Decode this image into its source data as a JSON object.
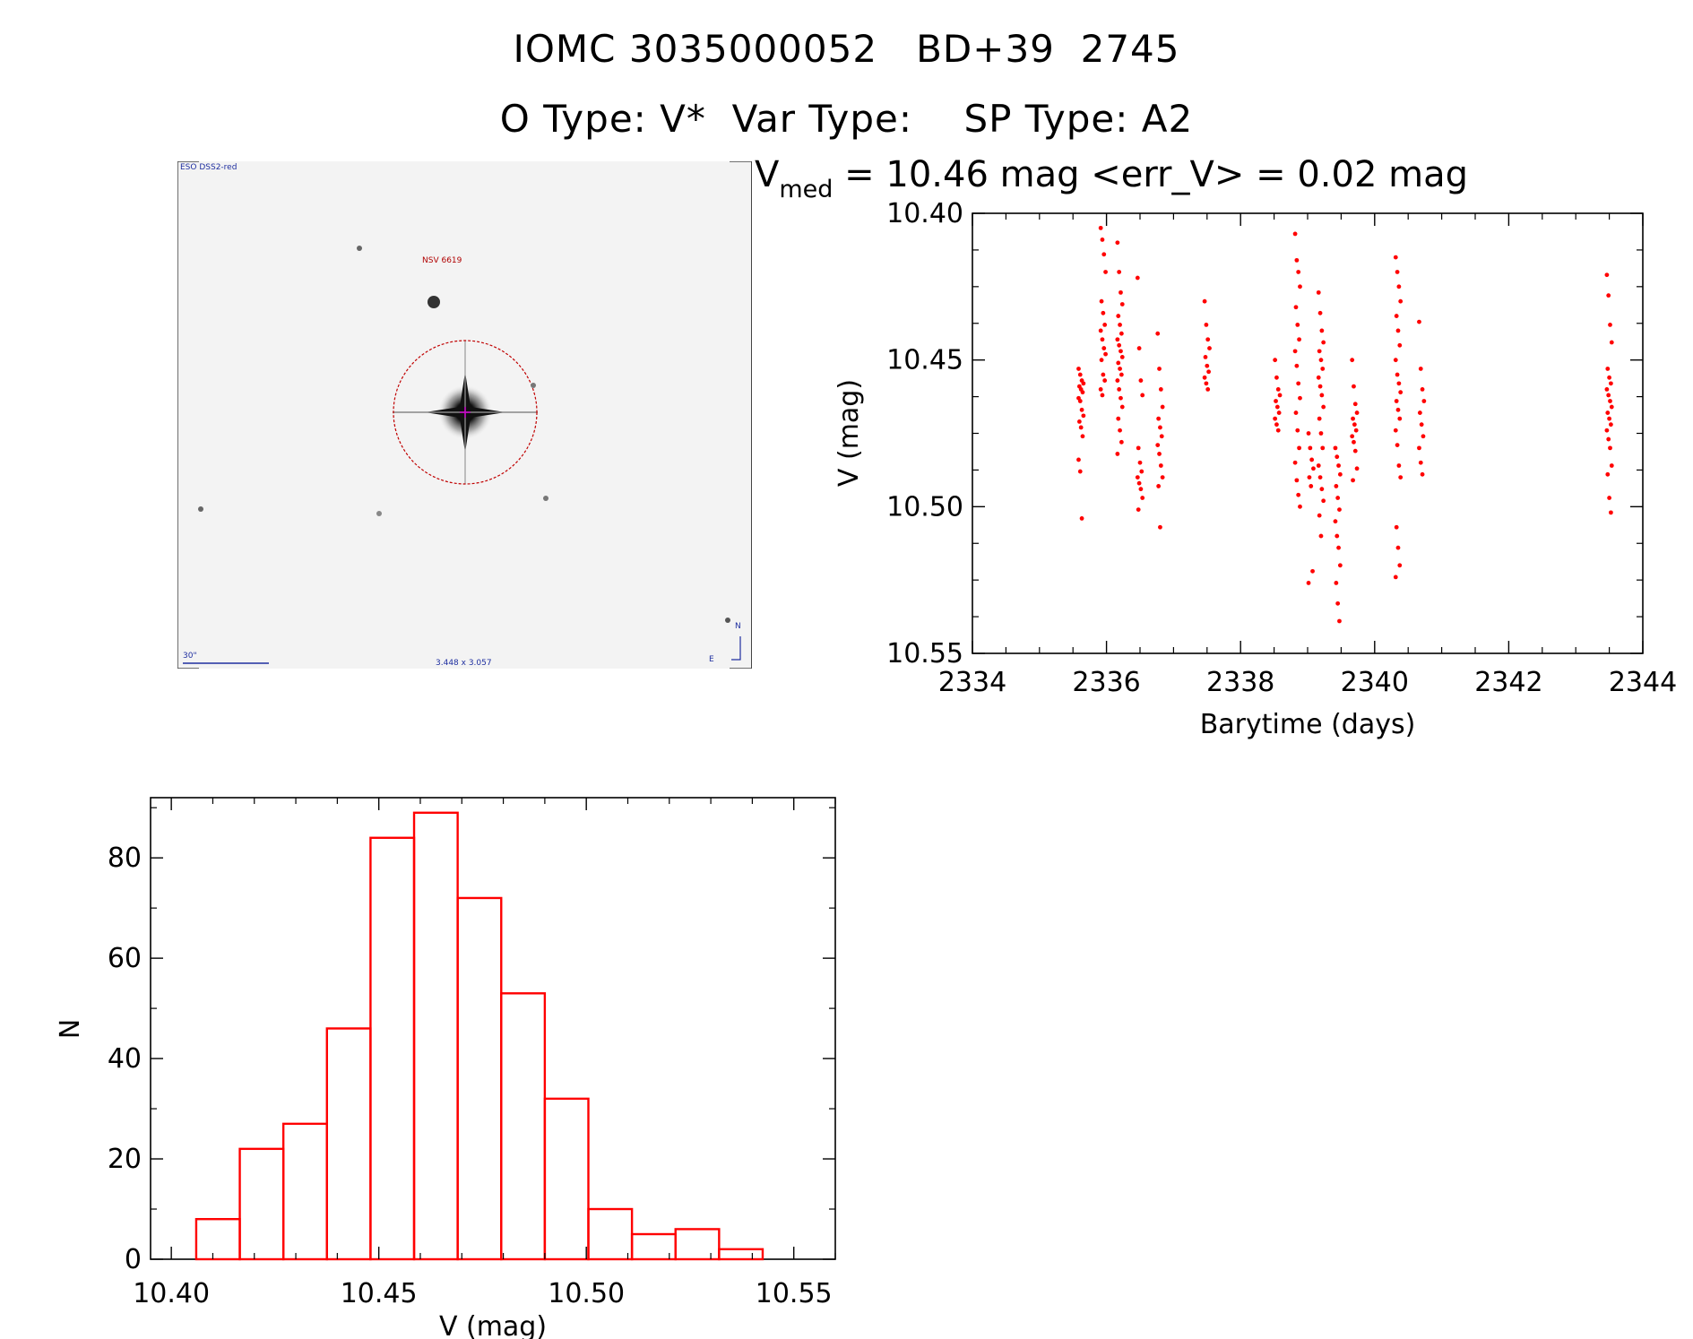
{
  "header": {
    "title_line1": "IOMC 3035000052   BD+39  2745",
    "title_line2": "O Type: V*  Var Type:    SP Type: A2"
  },
  "thumbnail": {
    "survey_label": "ESO DSS2-red",
    "target_label": "NSV 6619",
    "scale_label": "30\"",
    "size_label": "3.448 x 3.057",
    "north_label": "N",
    "east_label": "E"
  },
  "colors": {
    "data": "#ff0000",
    "axis": "#000000",
    "circle": "#c00000"
  },
  "chart_data": [
    {
      "type": "scatter",
      "title": "V_med = 10.46 mag <err_V> = 0.02 mag",
      "title_parts": {
        "v": "V",
        "sub": "med",
        "rest": " = 10.46 mag <err_V> = 0.02 mag"
      },
      "xlabel": "Barytime (days)",
      "ylabel": "V (mag)",
      "xlim": [
        2334,
        2344
      ],
      "ylim": [
        10.55,
        10.4
      ],
      "y_inverted": true,
      "xticks": [
        "2334",
        "2336",
        "2338",
        "2340",
        "2342",
        "2344"
      ],
      "yticks": [
        "10.40",
        "10.45",
        "10.50",
        "10.55"
      ],
      "series": [
        {
          "color": "#ff0000",
          "groups": [
            {
              "x": 2335.62,
              "y": [
                10.453,
                10.455,
                10.457,
                10.458,
                10.459,
                10.46,
                10.461,
                10.463,
                10.464,
                10.467,
                10.469,
                10.471,
                10.473,
                10.476,
                10.484,
                10.488,
                10.504
              ]
            },
            {
              "x": 2335.95,
              "y": [
                10.405,
                10.409,
                10.414,
                10.42,
                10.43,
                10.434,
                10.438,
                10.44,
                10.443,
                10.446,
                10.448,
                10.45,
                10.455,
                10.457,
                10.46,
                10.462
              ]
            },
            {
              "x": 2336.2,
              "y": [
                10.41,
                10.42,
                10.427,
                10.431,
                10.435,
                10.438,
                10.441,
                10.443,
                10.445,
                10.447,
                10.449,
                10.451,
                10.453,
                10.455,
                10.457,
                10.46,
                10.463,
                10.466,
                10.47,
                10.474,
                10.478,
                10.482
              ]
            },
            {
              "x": 2336.5,
              "y": [
                10.422,
                10.446,
                10.457,
                10.462,
                10.48,
                10.485,
                10.488,
                10.49,
                10.492,
                10.494,
                10.497,
                10.501
              ]
            },
            {
              "x": 2336.8,
              "y": [
                10.441,
                10.453,
                10.46,
                10.466,
                10.47,
                10.473,
                10.476,
                10.479,
                10.482,
                10.486,
                10.49,
                10.493,
                10.507
              ]
            },
            {
              "x": 2337.5,
              "y": [
                10.43,
                10.438,
                10.443,
                10.446,
                10.449,
                10.452,
                10.454,
                10.456,
                10.458,
                10.46
              ]
            },
            {
              "x": 2338.55,
              "y": [
                10.45,
                10.456,
                10.46,
                10.462,
                10.464,
                10.466,
                10.468,
                10.47,
                10.472,
                10.474
              ]
            },
            {
              "x": 2338.85,
              "y": [
                10.407,
                10.416,
                10.42,
                10.425,
                10.432,
                10.438,
                10.443,
                10.447,
                10.452,
                10.458,
                10.463,
                10.468,
                10.474,
                10.48,
                10.485,
                10.491,
                10.496,
                10.5
              ]
            },
            {
              "x": 2339.05,
              "y": [
                10.475,
                10.48,
                10.484,
                10.487,
                10.49,
                10.493,
                10.522,
                10.526
              ]
            },
            {
              "x": 2339.2,
              "y": [
                10.427,
                10.434,
                10.44,
                10.444,
                10.447,
                10.45,
                10.453,
                10.456,
                10.459,
                10.462,
                10.466,
                10.47,
                10.475,
                10.48,
                10.486,
                10.49,
                10.494,
                10.498,
                10.503,
                10.51
              ]
            },
            {
              "x": 2339.45,
              "y": [
                10.48,
                10.483,
                10.486,
                10.489,
                10.493,
                10.497,
                10.501,
                10.505,
                10.51,
                10.514,
                10.52,
                10.526,
                10.533,
                10.539
              ]
            },
            {
              "x": 2339.7,
              "y": [
                10.45,
                10.459,
                10.465,
                10.468,
                10.47,
                10.472,
                10.474,
                10.476,
                10.478,
                10.481,
                10.487,
                10.491
              ]
            },
            {
              "x": 2340.35,
              "y": [
                10.415,
                10.42,
                10.425,
                10.43,
                10.435,
                10.44,
                10.445,
                10.45,
                10.455,
                10.458,
                10.461,
                10.464,
                10.467,
                10.47,
                10.474,
                10.479,
                10.486,
                10.49,
                10.507,
                10.514,
                10.52,
                10.524
              ]
            },
            {
              "x": 2340.7,
              "y": [
                10.437,
                10.453,
                10.46,
                10.464,
                10.468,
                10.472,
                10.476,
                10.48,
                10.485,
                10.489
              ]
            },
            {
              "x": 2343.5,
              "y": [
                10.421,
                10.428,
                10.438,
                10.444,
                10.453,
                10.456,
                10.458,
                10.46,
                10.462,
                10.464,
                10.466,
                10.468,
                10.47,
                10.472,
                10.474,
                10.477,
                10.48,
                10.486,
                10.489,
                10.497,
                10.502
              ]
            }
          ]
        }
      ]
    },
    {
      "type": "bar",
      "subtype": "histogram",
      "xlabel": "V (mag)",
      "ylabel": "N",
      "xlim": [
        10.395,
        10.56
      ],
      "ylim": [
        0,
        92
      ],
      "xticks": [
        "10.40",
        "10.45",
        "10.50",
        "10.55"
      ],
      "yticks": [
        "0",
        "20",
        "40",
        "60",
        "80"
      ],
      "bin_edges": [
        10.406,
        10.4165,
        10.427,
        10.4375,
        10.448,
        10.4585,
        10.469,
        10.4795,
        10.49,
        10.5005,
        10.511,
        10.5215,
        10.532,
        10.5425
      ],
      "values": [
        8,
        22,
        27,
        46,
        84,
        89,
        72,
        53,
        32,
        10,
        5,
        6,
        2
      ],
      "color": "#ff0000"
    }
  ]
}
